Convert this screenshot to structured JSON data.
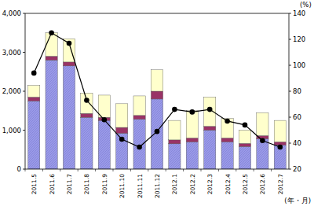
{
  "chart_data": {
    "type": "bar",
    "stacked": true,
    "grid": false,
    "x_label": "(年・月)",
    "y2_label": "(%)",
    "categories": [
      "2011.5",
      "2011.6",
      "2011.7",
      "2011.8",
      "2011.9",
      "2011.10",
      "2011.11",
      "2011.12",
      "2012.1",
      "2012.2",
      "2012.3",
      "2012.4",
      "2012.5",
      "2012.6",
      "2012.7"
    ],
    "ylim": [
      0,
      4000
    ],
    "yticks": [
      0,
      {
        "value": 1000,
        "label": "1,000"
      },
      {
        "value": 2000,
        "label": "2,000"
      },
      {
        "value": 3000,
        "label": "3,000"
      },
      {
        "value": 4000,
        "label": "4,000"
      }
    ],
    "y2lim": [
      20,
      140
    ],
    "y2ticks": [
      20,
      40,
      60,
      80,
      100,
      120,
      140
    ],
    "series": [
      {
        "type": "bar",
        "color": "#9a9ae8",
        "values": [
          1750,
          2800,
          2650,
          1330,
          1250,
          920,
          1280,
          1800,
          650,
          700,
          1000,
          700,
          580,
          780,
          620
        ]
      },
      {
        "type": "bar",
        "color": "#993366",
        "values": [
          100,
          100,
          100,
          100,
          80,
          150,
          100,
          200,
          100,
          100,
          100,
          100,
          80,
          80,
          80
        ]
      },
      {
        "type": "bar",
        "color": "#ffffcc",
        "values": [
          300,
          600,
          600,
          520,
          570,
          610,
          500,
          550,
          500,
          700,
          750,
          500,
          340,
          590,
          550
        ]
      },
      {
        "type": "line",
        "axis": "y2",
        "color": "#000000",
        "marker": "circle",
        "values": [
          94,
          125,
          117,
          73,
          58,
          43,
          37,
          49,
          66,
          64,
          66,
          57,
          54,
          42,
          37
        ]
      }
    ]
  }
}
